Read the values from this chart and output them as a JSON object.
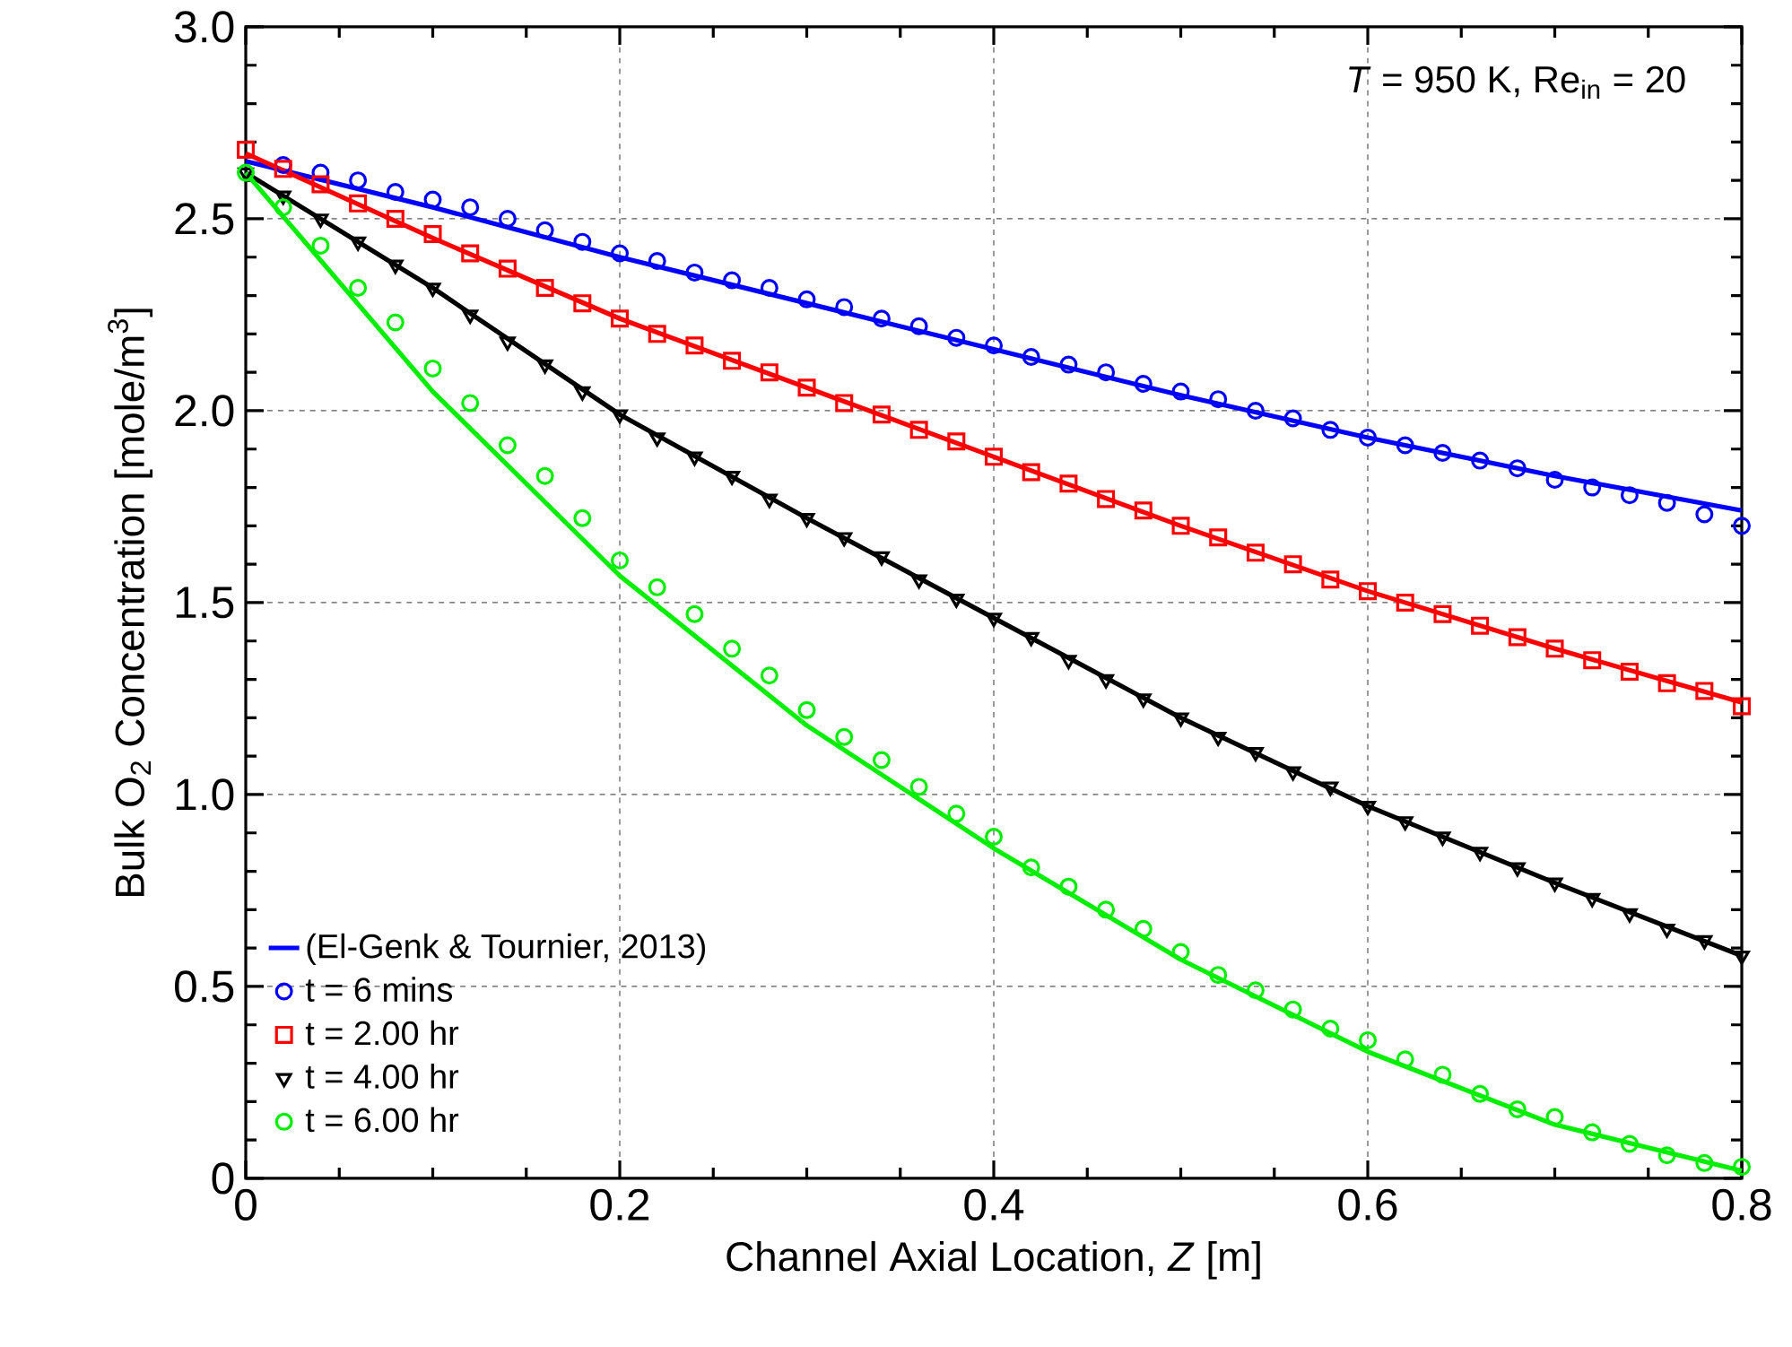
{
  "chart_data": {
    "type": "line",
    "xlabel": "Channel Axial Location, *Z* [m]",
    "ylabel": "Bulk O$_{2}$ Concentration [mole/m$^{3}$]",
    "annotations": [
      "*T* = 950 K, Re$_{in}$ = 20"
    ],
    "xlim": [
      0,
      0.8
    ],
    "ylim": [
      0,
      3.0
    ],
    "xticks": [
      0,
      0.2,
      0.4,
      0.6,
      0.8
    ],
    "yticks": [
      0,
      0.5,
      {
        "value": 1.0,
        "label": "1.0"
      },
      1.5,
      {
        "value": 2.0,
        "label": "2.0"
      },
      2.5,
      {
        "value": 3.0,
        "label": "3.0"
      }
    ],
    "grid": true,
    "legend": "bottom left",
    "series": [
      {
        "name": "(El-Genk & Tournier, 2013)",
        "color": "#0000ff",
        "marker": "none",
        "x": [
          0,
          0.1,
          0.2,
          0.3,
          0.4,
          0.5,
          0.6,
          0.7,
          0.8
        ],
        "values": [
          2.65,
          2.53,
          2.4,
          2.28,
          2.16,
          2.04,
          1.93,
          1.83,
          1.74
        ]
      },
      {
        "color": "#ff0000",
        "marker": "none",
        "x": [
          0,
          0.1,
          0.2,
          0.3,
          0.4,
          0.5,
          0.6,
          0.7,
          0.8
        ],
        "values": [
          2.67,
          2.45,
          2.24,
          2.06,
          1.88,
          1.7,
          1.53,
          1.38,
          1.24
        ]
      },
      {
        "color": "#000000",
        "marker": "none",
        "x": [
          0,
          0.1,
          0.2,
          0.3,
          0.4,
          0.5,
          0.6,
          0.7,
          0.8
        ],
        "values": [
          2.62,
          2.32,
          1.99,
          1.72,
          1.46,
          1.2,
          0.97,
          0.77,
          0.58
        ]
      },
      {
        "color": "#00ee00",
        "marker": "none",
        "x": [
          0,
          0.1,
          0.2,
          0.3,
          0.4,
          0.5,
          0.6,
          0.7,
          0.8
        ],
        "values": [
          2.62,
          2.05,
          1.57,
          1.18,
          0.86,
          0.57,
          0.33,
          0.14,
          0.02
        ]
      },
      {
        "type": "scatter",
        "name": "t = 6 mins",
        "color": "#0000ff",
        "marker": "circle",
        "x": [
          0.02,
          0.04,
          0.06,
          0.08,
          0.1,
          0.12,
          0.14,
          0.16,
          0.18,
          0.2,
          0.22,
          0.24,
          0.26,
          0.28,
          0.3,
          0.32,
          0.34,
          0.36,
          0.38,
          0.4,
          0.42,
          0.44,
          0.46,
          0.48,
          0.5,
          0.52,
          0.54,
          0.56,
          0.58,
          0.6,
          0.62,
          0.64,
          0.66,
          0.68,
          0.7,
          0.72,
          0.74,
          0.76,
          0.78,
          0.8
        ],
        "values": [
          2.64,
          2.62,
          2.6,
          2.57,
          2.55,
          2.53,
          2.5,
          2.47,
          2.44,
          2.41,
          2.39,
          2.36,
          2.34,
          2.32,
          2.29,
          2.27,
          2.24,
          2.22,
          2.19,
          2.17,
          2.14,
          2.12,
          2.1,
          2.07,
          2.05,
          2.03,
          2.0,
          1.98,
          1.95,
          1.93,
          1.91,
          1.89,
          1.87,
          1.85,
          1.82,
          1.8,
          1.78,
          1.76,
          1.73,
          1.7
        ]
      },
      {
        "type": "scatter",
        "name": "t = 2.00 hr",
        "color": "#ff0000",
        "marker": "square",
        "x": [
          0,
          0.02,
          0.04,
          0.06,
          0.08,
          0.1,
          0.12,
          0.14,
          0.16,
          0.18,
          0.2,
          0.22,
          0.24,
          0.26,
          0.28,
          0.3,
          0.32,
          0.34,
          0.36,
          0.38,
          0.4,
          0.42,
          0.44,
          0.46,
          0.48,
          0.5,
          0.52,
          0.54,
          0.56,
          0.58,
          0.6,
          0.62,
          0.64,
          0.66,
          0.68,
          0.7,
          0.72,
          0.74,
          0.76,
          0.78,
          0.8
        ],
        "values": [
          2.68,
          2.63,
          2.59,
          2.54,
          2.5,
          2.46,
          2.41,
          2.37,
          2.32,
          2.28,
          2.24,
          2.2,
          2.17,
          2.13,
          2.1,
          2.06,
          2.02,
          1.99,
          1.95,
          1.92,
          1.88,
          1.84,
          1.81,
          1.77,
          1.74,
          1.7,
          1.67,
          1.63,
          1.6,
          1.56,
          1.53,
          1.5,
          1.47,
          1.44,
          1.41,
          1.38,
          1.35,
          1.32,
          1.29,
          1.27,
          1.23
        ]
      },
      {
        "type": "scatter",
        "name": "t = 4.00 hr",
        "color": "#000000",
        "marker": "triangle",
        "x": [
          0,
          0.02,
          0.04,
          0.06,
          0.08,
          0.1,
          0.12,
          0.14,
          0.16,
          0.18,
          0.2,
          0.22,
          0.24,
          0.26,
          0.28,
          0.3,
          0.32,
          0.34,
          0.36,
          0.38,
          0.4,
          0.42,
          0.44,
          0.46,
          0.48,
          0.5,
          0.52,
          0.54,
          0.56,
          0.58,
          0.6,
          0.62,
          0.64,
          0.66,
          0.68,
          0.7,
          0.72,
          0.74,
          0.76,
          0.78,
          0.8
        ],
        "values": [
          2.62,
          2.56,
          2.5,
          2.44,
          2.38,
          2.32,
          2.25,
          2.18,
          2.12,
          2.05,
          1.99,
          1.93,
          1.88,
          1.83,
          1.77,
          1.72,
          1.67,
          1.62,
          1.56,
          1.51,
          1.46,
          1.41,
          1.35,
          1.3,
          1.25,
          1.2,
          1.15,
          1.11,
          1.06,
          1.02,
          0.97,
          0.93,
          0.89,
          0.85,
          0.81,
          0.77,
          0.73,
          0.69,
          0.65,
          0.62,
          0.58
        ]
      },
      {
        "type": "scatter",
        "name": "t = 6.00 hr",
        "color": "#00ee00",
        "marker": "circle",
        "x": [
          0,
          0.02,
          0.04,
          0.06,
          0.08,
          0.1,
          0.12,
          0.14,
          0.16,
          0.18,
          0.2,
          0.22,
          0.24,
          0.26,
          0.28,
          0.3,
          0.32,
          0.34,
          0.36,
          0.38,
          0.4,
          0.42,
          0.44,
          0.46,
          0.48,
          0.5,
          0.52,
          0.54,
          0.56,
          0.58,
          0.6,
          0.62,
          0.64,
          0.66,
          0.68,
          0.7,
          0.72,
          0.74,
          0.76,
          0.78,
          0.8
        ],
        "values": [
          2.62,
          2.53,
          2.43,
          2.32,
          2.23,
          2.11,
          2.02,
          1.91,
          1.83,
          1.72,
          1.61,
          1.54,
          1.47,
          1.38,
          1.31,
          1.22,
          1.15,
          1.09,
          1.02,
          0.95,
          0.89,
          0.81,
          0.76,
          0.7,
          0.65,
          0.59,
          0.53,
          0.49,
          0.44,
          0.39,
          0.36,
          0.31,
          0.27,
          0.22,
          0.18,
          0.16,
          0.12,
          0.09,
          0.06,
          0.04,
          0.03
        ]
      }
    ]
  }
}
